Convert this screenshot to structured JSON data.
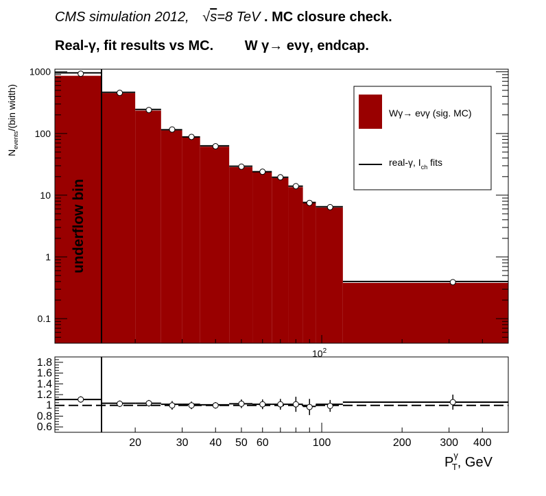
{
  "title": {
    "line1_part1": "CMS simulation 2012,",
    "line1_sqrt": "s",
    "line1_part2": "=8 TeV",
    "line1_part3": ". MC closure check.",
    "line2_part1": "Real-γ, fit results vs MC.",
    "line2_part2": "W  γ→ eνγ, endcap."
  },
  "colors": {
    "signal_fill": "#990000",
    "line": "#000000",
    "marker_fill": "#ffffff"
  },
  "chart_data": [
    {
      "type": "bar",
      "panel": "main",
      "ylabel": "N_events/(bin width)",
      "ylabel_main": "N",
      "ylabel_sub": "events",
      "ylabel_tail": "/(bin width)",
      "yscale": "log",
      "ylim": [
        0.04,
        1100
      ],
      "xscale": "log",
      "xlim": [
        10,
        500
      ],
      "y_ticks": [
        "0.1",
        "1",
        "10",
        "100",
        "1000"
      ],
      "x_tick_exponent_label": "10",
      "x_tick_exponent_sup": "2",
      "bin_edges_display": [
        10,
        15,
        20,
        25,
        30,
        35,
        45,
        55,
        65,
        75,
        85,
        95,
        120,
        500
      ],
      "x_centers_display": [
        12.5,
        17.5,
        22.5,
        27.5,
        32.5,
        40,
        50,
        60,
        70,
        80,
        90,
        107.5,
        310
      ],
      "series": [
        {
          "name": "Wγ→ eνγ (sig. MC)",
          "kind": "hist",
          "values": [
            860,
            450,
            235,
            112,
            86,
            61,
            28.5,
            23.5,
            19,
            13.5,
            7.8,
            6.3,
            0.38
          ]
        },
        {
          "name": "real-γ, I_ch fits",
          "name_main": "real-γ, I",
          "name_sub": "ch",
          "name_tail": " fits",
          "kind": "line",
          "values": [
            960,
            465,
            245,
            115,
            88,
            63,
            29.5,
            24,
            19.5,
            14,
            7.6,
            6.5,
            0.4
          ]
        },
        {
          "name": "points",
          "kind": "points",
          "values": [
            930,
            455,
            240,
            116,
            88,
            62,
            29,
            24,
            19.5,
            14,
            7.5,
            6.4,
            0.39
          ]
        }
      ],
      "annotation": "underflow bin",
      "legend_position": "top-right"
    },
    {
      "type": "scatter",
      "panel": "ratio",
      "ylim": [
        0.5,
        1.9
      ],
      "y_ticks": [
        "0.6",
        "0.8",
        "1",
        "1.2",
        "1.4",
        "1.6",
        "1.8"
      ],
      "x_ticks": [
        "20",
        "30",
        "40",
        "50",
        "60",
        "100",
        "200",
        "300",
        "400"
      ],
      "xlabel_main": "P",
      "xlabel_sup": "γ",
      "xlabel_sub": "T",
      "xlabel_tail": ", GeV",
      "reference_line": 1.0,
      "ratio_line": [
        1.11,
        1.04,
        1.04,
        1.02,
        1.02,
        1.01,
        1.03,
        1.02,
        1.02,
        1.02,
        0.98,
        1.02,
        1.06
      ],
      "points": [
        1.11,
        1.03,
        1.04,
        1.0,
        1.0,
        1.0,
        1.03,
        1.02,
        1.02,
        1.02,
        0.97,
        0.99,
        1.06
      ],
      "errors": [
        0.06,
        0.06,
        0.06,
        0.08,
        0.07,
        0.06,
        0.08,
        0.09,
        0.1,
        0.14,
        0.15,
        0.11,
        0.14
      ]
    }
  ]
}
